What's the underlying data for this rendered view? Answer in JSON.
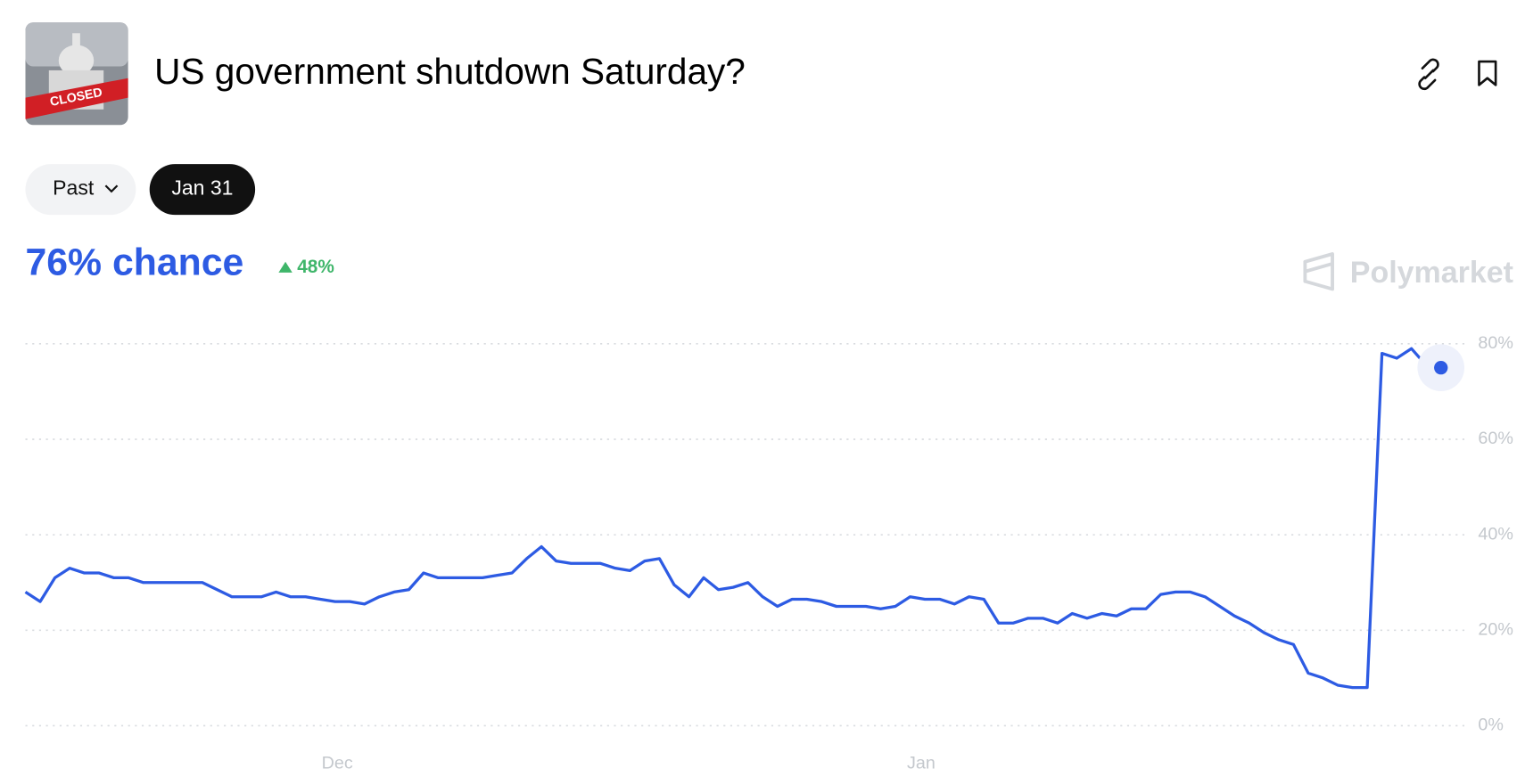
{
  "header": {
    "title": "US government shutdown Saturday?",
    "icon_text": "CLOSED",
    "filters": [
      "Past",
      "Jan 31"
    ],
    "chance": "76% chance",
    "change": "48%",
    "watermark": "Polymarket"
  },
  "chart_data": {
    "type": "line",
    "color": "#2d5be3",
    "values": [
      28,
      26,
      31,
      33,
      32,
      32,
      31,
      31,
      30,
      30,
      30,
      30,
      30,
      28.5,
      27,
      27,
      27,
      28,
      27,
      27,
      26.5,
      26,
      26,
      25.5,
      27,
      28,
      28.5,
      32,
      31,
      31,
      31,
      31,
      31.5,
      32,
      35,
      37.5,
      34.5,
      34,
      34,
      34,
      33,
      32.5,
      34.5,
      35,
      29.5,
      27,
      31,
      28.5,
      29,
      30,
      27,
      25,
      26.5,
      26.5,
      26,
      25,
      25,
      25,
      24.5,
      25,
      27,
      26.5,
      26.5,
      25.5,
      27,
      26.5,
      21.5,
      21.5,
      22.5,
      22.5,
      21.5,
      23.5,
      22.5,
      23.5,
      23,
      24.5,
      24.5,
      27.5,
      28,
      28,
      27,
      25,
      23,
      21.5,
      19.5,
      18,
      17,
      11,
      10,
      8.5,
      8,
      8,
      78,
      77,
      79,
      75.5,
      75
    ],
    "xlim": [
      0,
      96
    ],
    "xticks": [
      {
        "value": 21.15,
        "label": "Dec"
      },
      {
        "value": 60.75,
        "label": "Jan"
      }
    ],
    "ylim": [
      0,
      80
    ],
    "yticks": [
      {
        "value": 0,
        "label": "0%"
      },
      {
        "value": 20,
        "label": "20%"
      },
      {
        "value": 40,
        "label": "40%"
      },
      {
        "value": 60,
        "label": "60%"
      },
      {
        "value": 80,
        "label": "80%"
      }
    ],
    "grid": true
  }
}
